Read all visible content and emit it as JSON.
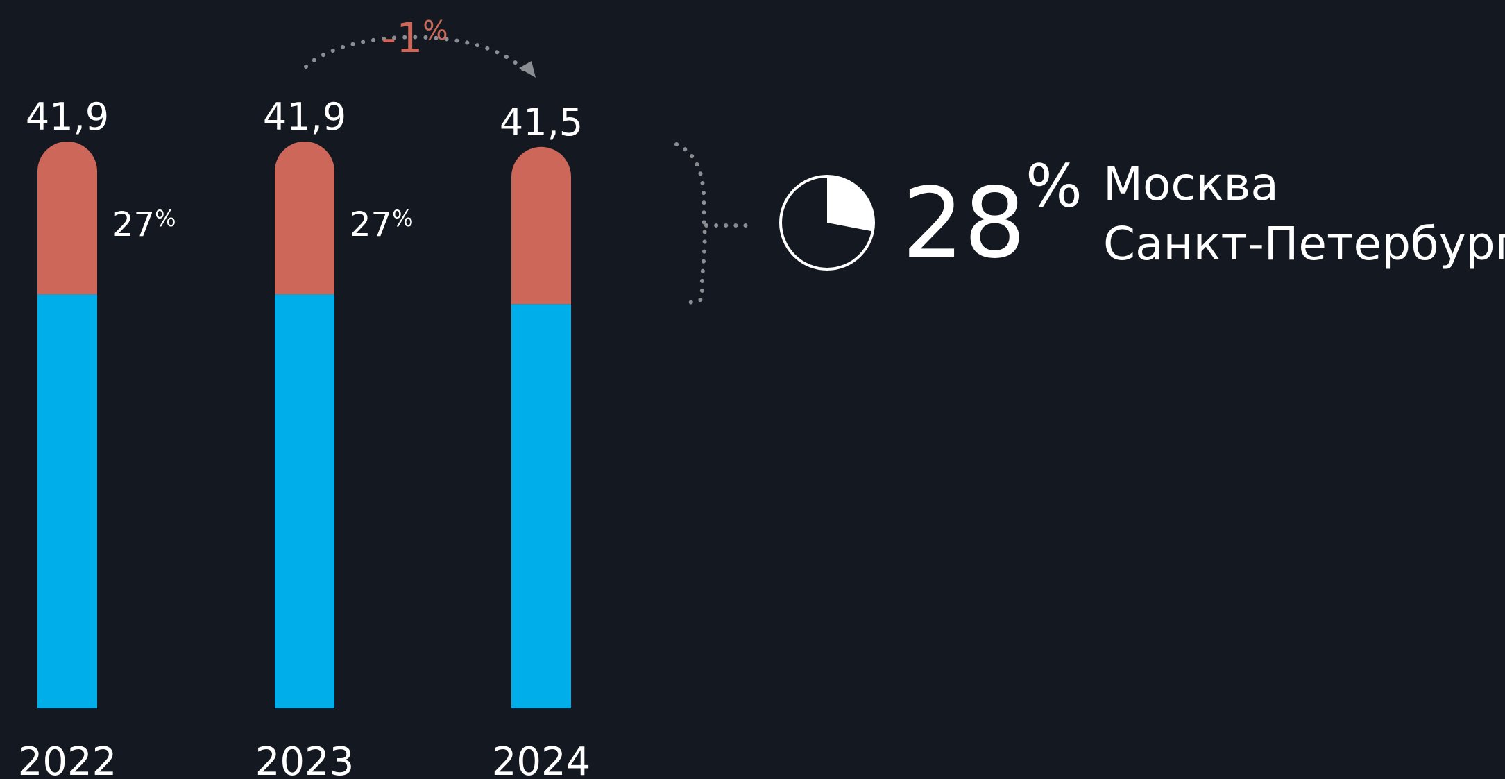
{
  "chart_data": {
    "type": "bar",
    "stacked": true,
    "categories": [
      "2022",
      "2023",
      "2024"
    ],
    "totals": [
      "41,9",
      "41,9",
      "41,5"
    ],
    "total_values": [
      41.9,
      41.9,
      41.5
    ],
    "top_share_percent": [
      27,
      27,
      28
    ],
    "share_labels": [
      "27",
      "27",
      ""
    ],
    "percent_sign": "%",
    "change": {
      "value": "-1",
      "unit": "%",
      "from": "2023",
      "to": "2024"
    },
    "highlight": {
      "share": "28",
      "unit": "%",
      "share_value": 28,
      "cities": [
        "Москва",
        "Санкт-Петербург"
      ]
    },
    "colors": {
      "background": "#141820",
      "bottom_segment": "#00AEEA",
      "top_segment": "#CC675A",
      "change_text": "#CC675A",
      "connector": "#8A8D92",
      "text": "#FFFFFF"
    },
    "ylim": [
      0,
      42
    ]
  }
}
